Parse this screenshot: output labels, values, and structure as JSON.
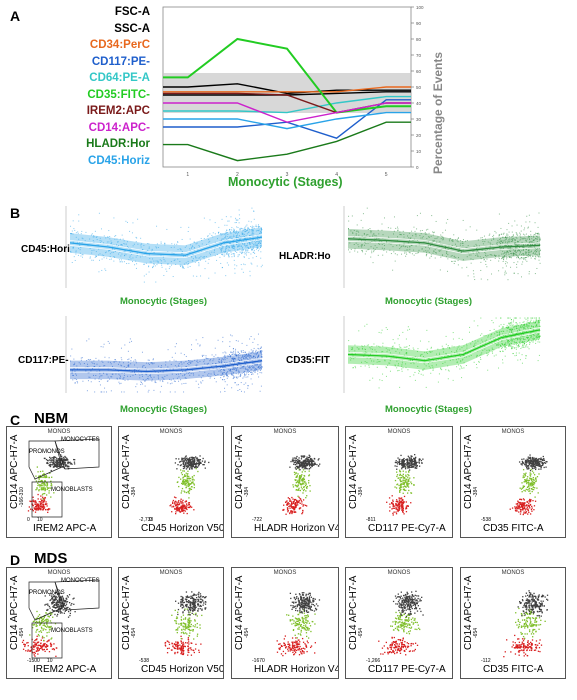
{
  "panels": {
    "A": "A",
    "B": "B",
    "C": "C",
    "D": "D",
    "C_title": "NBM",
    "D_title": "MDS"
  },
  "panelA": {
    "legend": [
      {
        "label": "FSC-A",
        "color": "#000000"
      },
      {
        "label": "SSC-A",
        "color": "#000000"
      },
      {
        "label": "CD34:PerC",
        "color": "#e8691f"
      },
      {
        "label": "CD117:PE-",
        "color": "#1f5fcc"
      },
      {
        "label": "CD64:PE-A",
        "color": "#33c7c7"
      },
      {
        "label": "CD35:FITC-",
        "color": "#22cc22"
      },
      {
        "label": "IREM2:APC",
        "color": "#7a1a1a"
      },
      {
        "label": "CD14:APC-",
        "color": "#cc22cc"
      },
      {
        "label": "HLADR:Hor",
        "color": "#1a7a1a"
      },
      {
        "label": "CD45:Horiz",
        "color": "#29a3e8"
      }
    ],
    "xlabel": "Monocytic (Stages)",
    "ylabel": "Percentage of Events",
    "bottom_tick_labels": [
      "1",
      "2",
      "3",
      "4",
      "5"
    ],
    "right_tick_labels": [
      "100",
      "90",
      "80",
      "70",
      "60",
      "50",
      "40",
      "30",
      "20",
      "10",
      "0"
    ]
  },
  "panelB": [
    {
      "label": "CD45:Hori",
      "label_color": "#29a3e8",
      "xlabel": "Monocytic (Stages)"
    },
    {
      "label": "HLADR:Ho",
      "label_color": "#1a7a1a",
      "xlabel": "Monocytic (Stages)"
    },
    {
      "label": "CD117:PE-",
      "label_color": "#1f5fcc",
      "xlabel": "Monocytic (Stages)"
    },
    {
      "label": "CD35:FIT",
      "label_color": "#22cc22",
      "xlabel": "Monocytic (Stages)"
    }
  ],
  "flow": {
    "title": "MONOS",
    "ylabel": "CD14 APC-H7-A",
    "gates": {
      "promonos": "PROMONOS",
      "monocytes": "MONOCYTES",
      "monoblasts": "MONOBLASTS"
    },
    "C": [
      {
        "xlabel": "IREM2 APC-A",
        "y_ticks": [
          "-310",
          "-166"
        ],
        "x_ticks": [
          "0",
          "10"
        ]
      },
      {
        "xlabel": "CD45 Horizon V500-A",
        "y_ticks": [
          "-384"
        ],
        "x_ticks": [
          "-2,733",
          "0"
        ]
      },
      {
        "xlabel": "HLADR Horizon V450-A",
        "y_ticks": [
          "-384"
        ],
        "x_ticks": [
          "-722"
        ]
      },
      {
        "xlabel": "CD117 PE-Cy7-A",
        "y_ticks": [
          "-384"
        ],
        "x_ticks": [
          "-811"
        ]
      },
      {
        "xlabel": "CD35 FITC-A",
        "y_ticks": [
          "-384"
        ],
        "x_ticks": [
          "-538"
        ]
      }
    ],
    "D": [
      {
        "xlabel": "IREM2 APC-A",
        "y_ticks": [
          "-654"
        ],
        "x_ticks": [
          "-150",
          "0",
          "10"
        ]
      },
      {
        "xlabel": "CD45 Horizon V500-A",
        "y_ticks": [
          "-654"
        ],
        "x_ticks": [
          "-538"
        ]
      },
      {
        "xlabel": "HLADR Horizon V450-A",
        "y_ticks": [
          "-654"
        ],
        "x_ticks": [
          "-167",
          "0"
        ]
      },
      {
        "xlabel": "CD117 PE-Cy7-A",
        "y_ticks": [
          "-654"
        ],
        "x_ticks": [
          "-1,266"
        ]
      },
      {
        "xlabel": "CD35 FITC-A",
        "y_ticks": [
          "-654"
        ],
        "x_ticks": [
          "-112"
        ]
      }
    ]
  },
  "chart_data": [
    {
      "type": "line",
      "xlabel": "Monocytic (Stages)",
      "ylabel": "Percentage of Events",
      "x": [
        1,
        2,
        3,
        4,
        5
      ],
      "series": [
        {
          "name": "FSC-A",
          "values": [
            50,
            52,
            46,
            48,
            48
          ]
        },
        {
          "name": "SSC-A",
          "values": [
            45,
            45,
            45,
            46,
            47
          ]
        },
        {
          "name": "CD34:PerC",
          "values": [
            47,
            47,
            47,
            47,
            50
          ]
        },
        {
          "name": "CD117:PE-",
          "values": [
            25,
            25,
            28,
            18,
            42
          ]
        },
        {
          "name": "CD64:PE-A",
          "values": [
            35,
            35,
            34,
            40,
            44
          ]
        },
        {
          "name": "CD35:FITC-",
          "values": [
            56,
            80,
            74,
            34,
            38
          ]
        },
        {
          "name": "IREM2:APC",
          "values": [
            46,
            46,
            45,
            34,
            40
          ]
        },
        {
          "name": "CD14:APC-",
          "values": [
            40,
            40,
            28,
            34,
            40
          ]
        },
        {
          "name": "HLADR:Hor",
          "values": [
            14,
            4,
            8,
            16,
            28
          ]
        },
        {
          "name": "CD45:Horiz",
          "values": [
            30,
            30,
            24,
            30,
            34
          ]
        }
      ]
    }
  ]
}
